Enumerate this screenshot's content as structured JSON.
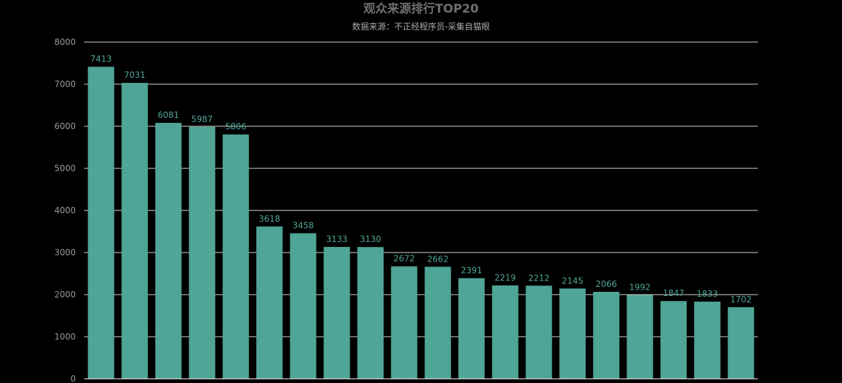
{
  "chart_data": {
    "type": "bar",
    "title": "观众来源排行TOP20",
    "subtitle": "数据来源：不正经程序员-采集自猫眼",
    "categories": [
      "",
      "",
      "",
      "",
      "",
      "",
      "",
      "",
      "",
      "",
      "",
      "",
      "",
      "",
      "",
      "",
      "",
      "",
      "",
      ""
    ],
    "values": [
      7413,
      7031,
      6081,
      5987,
      5806,
      3618,
      3458,
      3133,
      3130,
      2672,
      2662,
      2391,
      2219,
      2212,
      2145,
      2066,
      1992,
      1847,
      1833,
      1702
    ],
    "ylim": [
      0,
      8000
    ],
    "yticks": [
      0,
      1000,
      2000,
      3000,
      4000,
      5000,
      6000,
      7000,
      8000
    ],
    "grid": true,
    "legend": "none",
    "colors": {
      "bar": "#4fa596",
      "label": "#4fa596",
      "grid": "#ffffff",
      "axis_text": "#999999",
      "title": "#6f6f6f",
      "subtitle": "#aaaaaa"
    }
  }
}
